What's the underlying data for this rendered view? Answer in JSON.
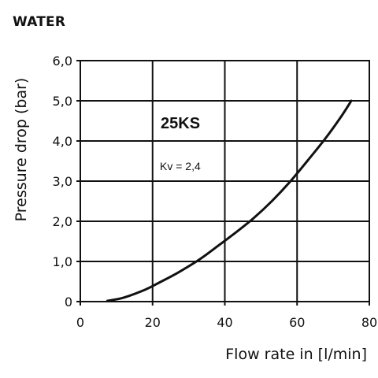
{
  "header": {
    "label": "WATER"
  },
  "chart_data": {
    "type": "line",
    "title": "",
    "xlabel": "Flow rate in [l/min]",
    "ylabel": "Pressure drop (bar)",
    "xlim": [
      0,
      80
    ],
    "ylim": [
      0,
      6
    ],
    "xticks": [
      0,
      20,
      40,
      60,
      80
    ],
    "xtick_labels": [
      "0",
      "20",
      "40",
      "60",
      "80"
    ],
    "yticks": [
      0,
      1,
      2,
      3,
      4,
      5,
      6
    ],
    "ytick_labels": [
      "0",
      "1,0",
      "2,0",
      "3,0",
      "4,0",
      "5,0",
      "6,0"
    ],
    "grid": true,
    "annotations": {
      "model": "25KS",
      "kv": "Kv = 2,4"
    },
    "series": [
      {
        "x": [
          7.5,
          12,
          18,
          22,
          27,
          33,
          38,
          43,
          48,
          53,
          58,
          63,
          68,
          72,
          75
        ],
        "y": [
          0.02,
          0.1,
          0.3,
          0.48,
          0.72,
          1.05,
          1.38,
          1.72,
          2.08,
          2.5,
          2.98,
          3.52,
          4.08,
          4.58,
          5.0
        ]
      }
    ]
  }
}
